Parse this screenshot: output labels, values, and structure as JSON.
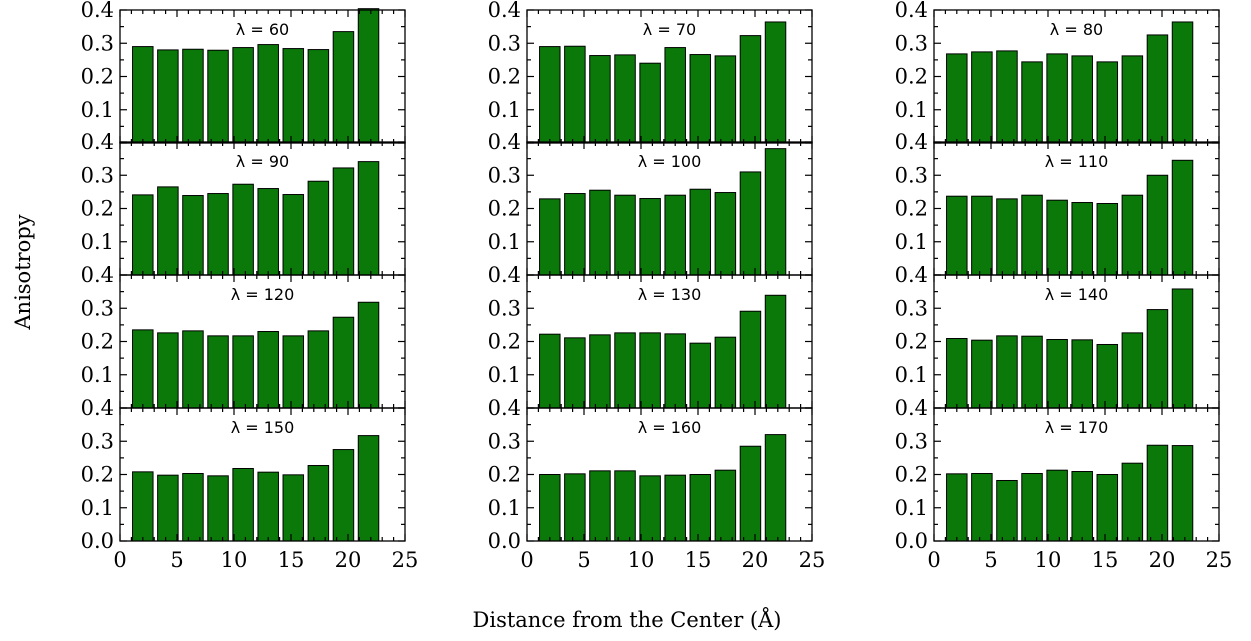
{
  "ylabel": "Anisotropy",
  "xlabel": "Distance from the Center (Å)",
  "colors": {
    "bar": "#0a790a",
    "edge": "#000000"
  },
  "chart_data": {
    "type": "bar",
    "layout": "4 rows x 3 columns, shared axes",
    "x": [
      2,
      4.2,
      6.4,
      8.6,
      10.8,
      13,
      15.2,
      17.4,
      19.6,
      21.8,
      24
    ],
    "xlim": [
      0,
      25
    ],
    "ylim": [
      0,
      0.4
    ],
    "xticks": [
      "0",
      "5",
      "10",
      "15",
      "20",
      "25"
    ],
    "yticks": [
      "0.0",
      "0.1",
      "0.2",
      "0.3",
      "0.4"
    ],
    "yticks_panel": [
      "0.1",
      "0.2",
      "0.3",
      "0.4"
    ],
    "grid": false,
    "legend": "none",
    "panels": [
      {
        "label": "λ = 60",
        "values": [
          0.29,
          0.28,
          0.282,
          0.279,
          0.287,
          0.296,
          0.284,
          0.281,
          0.335,
          0.404
        ]
      },
      {
        "label": "λ = 70",
        "values": [
          0.29,
          0.291,
          0.263,
          0.265,
          0.24,
          0.287,
          0.266,
          0.262,
          0.323,
          0.364
        ]
      },
      {
        "label": "λ = 80",
        "values": [
          0.268,
          0.274,
          0.277,
          0.244,
          0.268,
          0.262,
          0.244,
          0.262,
          0.325,
          0.364
        ]
      },
      {
        "label": "λ = 90",
        "values": [
          0.241,
          0.265,
          0.239,
          0.245,
          0.273,
          0.26,
          0.242,
          0.282,
          0.322,
          0.341
        ]
      },
      {
        "label": "λ = 100",
        "values": [
          0.229,
          0.245,
          0.255,
          0.24,
          0.23,
          0.24,
          0.258,
          0.248,
          0.31,
          0.38
        ]
      },
      {
        "label": "λ = 110",
        "values": [
          0.237,
          0.237,
          0.229,
          0.24,
          0.225,
          0.218,
          0.215,
          0.24,
          0.3,
          0.345
        ]
      },
      {
        "label": "λ = 120",
        "values": [
          0.235,
          0.226,
          0.232,
          0.217,
          0.217,
          0.23,
          0.217,
          0.232,
          0.273,
          0.318
        ]
      },
      {
        "label": "λ = 130",
        "values": [
          0.222,
          0.211,
          0.22,
          0.226,
          0.226,
          0.223,
          0.195,
          0.213,
          0.291,
          0.339
        ]
      },
      {
        "label": "λ = 140",
        "values": [
          0.209,
          0.204,
          0.217,
          0.216,
          0.206,
          0.205,
          0.191,
          0.226,
          0.296,
          0.358
        ]
      },
      {
        "label": "λ = 150",
        "values": [
          0.208,
          0.198,
          0.203,
          0.196,
          0.218,
          0.207,
          0.199,
          0.227,
          0.275,
          0.317
        ]
      },
      {
        "label": "λ = 160",
        "values": [
          0.2,
          0.202,
          0.211,
          0.211,
          0.196,
          0.198,
          0.2,
          0.213,
          0.285,
          0.32
        ]
      },
      {
        "label": "λ = 170",
        "values": [
          0.202,
          0.203,
          0.182,
          0.203,
          0.213,
          0.209,
          0.2,
          0.234,
          0.288,
          0.287
        ]
      }
    ]
  }
}
